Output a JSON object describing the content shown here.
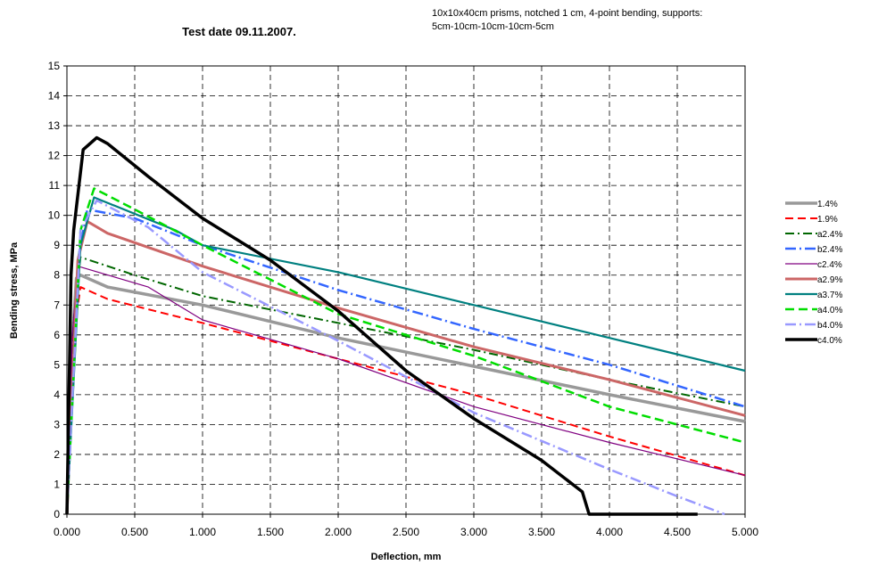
{
  "chart_data": {
    "type": "line",
    "title": "Test date 09.11.2007.",
    "subtitle_lines": [
      "10x10x40cm prisms, notched 1 cm, 4-point bending, supports:",
      "5cm-10cm-10cm-10cm-5cm"
    ],
    "xlabel": "Deflection, mm",
    "ylabel": "Bending stress, MPa",
    "xlim": [
      0,
      5
    ],
    "ylim": [
      0,
      15
    ],
    "x_ticks": [
      "0.000",
      "0.500",
      "1.000",
      "1.500",
      "2.000",
      "2.500",
      "3.000",
      "3.500",
      "4.000",
      "4.500",
      "5.000"
    ],
    "y_ticks": [
      "0",
      "1",
      "2",
      "3",
      "4",
      "5",
      "6",
      "7",
      "8",
      "9",
      "10",
      "11",
      "12",
      "13",
      "14",
      "15"
    ],
    "grid": true,
    "legend_position": "right",
    "series": [
      {
        "name": "1.4%",
        "color": "#999999",
        "dash": "",
        "width": 3.5,
        "points": [
          [
            0,
            0
          ],
          [
            0.03,
            5
          ],
          [
            0.07,
            7.9
          ],
          [
            0.1,
            8.0
          ],
          [
            0.3,
            7.6
          ],
          [
            1.0,
            7.0
          ],
          [
            2.0,
            5.9
          ],
          [
            3.0,
            4.95
          ],
          [
            4.0,
            4.0
          ],
          [
            5.0,
            3.1
          ]
        ]
      },
      {
        "name": "1.9%",
        "color": "#ff0000",
        "dash": "9,5",
        "width": 2,
        "points": [
          [
            0,
            0
          ],
          [
            0.05,
            6
          ],
          [
            0.1,
            7.6
          ],
          [
            0.3,
            7.2
          ],
          [
            1.0,
            6.4
          ],
          [
            2.0,
            5.2
          ],
          [
            3.0,
            4.0
          ],
          [
            4.0,
            2.6
          ],
          [
            5.0,
            1.3
          ]
        ]
      },
      {
        "name": "a2.4%",
        "color": "#006600",
        "dash": "10,4,2,4",
        "width": 2,
        "points": [
          [
            0,
            0
          ],
          [
            0.05,
            6.5
          ],
          [
            0.1,
            8.6
          ],
          [
            0.5,
            8.0
          ],
          [
            1.0,
            7.3
          ],
          [
            2.0,
            6.4
          ],
          [
            3.0,
            5.5
          ],
          [
            4.0,
            4.5
          ],
          [
            5.0,
            3.6
          ]
        ]
      },
      {
        "name": "b2.4%",
        "color": "#3366ff",
        "dash": "12,4,2,4",
        "width": 2.5,
        "points": [
          [
            0,
            0
          ],
          [
            0.08,
            8.5
          ],
          [
            0.15,
            10.2
          ],
          [
            0.5,
            9.9
          ],
          [
            1.0,
            9.0
          ],
          [
            2.0,
            7.5
          ],
          [
            3.0,
            6.2
          ],
          [
            4.0,
            5.0
          ],
          [
            5.0,
            3.6
          ]
        ]
      },
      {
        "name": "c2.4%",
        "color": "#800080",
        "dash": "",
        "width": 1.2,
        "points": [
          [
            0,
            0
          ],
          [
            0.04,
            6
          ],
          [
            0.08,
            8.3
          ],
          [
            0.6,
            7.6
          ],
          [
            1.0,
            6.5
          ],
          [
            2.0,
            5.2
          ],
          [
            3.0,
            3.6
          ],
          [
            4.0,
            2.4
          ],
          [
            5.0,
            1.3
          ]
        ]
      },
      {
        "name": "a2.9%",
        "color": "#cc6666",
        "dash": "",
        "width": 3,
        "points": [
          [
            0,
            0
          ],
          [
            0.08,
            8.5
          ],
          [
            0.15,
            9.8
          ],
          [
            0.3,
            9.4
          ],
          [
            1.0,
            8.3
          ],
          [
            2.0,
            6.9
          ],
          [
            3.0,
            5.6
          ],
          [
            4.0,
            4.5
          ],
          [
            5.0,
            3.3
          ]
        ]
      },
      {
        "name": "a3.7%",
        "color": "#008080",
        "dash": "",
        "width": 2.2,
        "points": [
          [
            0,
            0
          ],
          [
            0.1,
            9.0
          ],
          [
            0.2,
            10.6
          ],
          [
            0.8,
            9.5
          ],
          [
            1.0,
            9.0
          ],
          [
            2.0,
            8.1
          ],
          [
            3.0,
            7.0
          ],
          [
            4.0,
            5.9
          ],
          [
            5.0,
            4.8
          ]
        ]
      },
      {
        "name": "a4.0%",
        "color": "#00dd00",
        "dash": "10,5",
        "width": 2.5,
        "points": [
          [
            0,
            0
          ],
          [
            0.1,
            9.5
          ],
          [
            0.2,
            10.9
          ],
          [
            0.5,
            10.2
          ],
          [
            1.0,
            9.0
          ],
          [
            2.0,
            6.7
          ],
          [
            3.0,
            5.3
          ],
          [
            4.0,
            3.6
          ],
          [
            5.0,
            2.4
          ]
        ]
      },
      {
        "name": "b4.0%",
        "color": "#9999ff",
        "dash": "12,4,2,4",
        "width": 2.5,
        "points": [
          [
            0,
            0
          ],
          [
            0.1,
            9.5
          ],
          [
            0.22,
            10.5
          ],
          [
            0.6,
            9.6
          ],
          [
            1.0,
            8.1
          ],
          [
            2.0,
            5.8
          ],
          [
            3.0,
            3.4
          ],
          [
            4.0,
            1.5
          ],
          [
            4.5,
            0.6
          ],
          [
            4.85,
            0
          ]
        ]
      },
      {
        "name": "c4.0%",
        "color": "#000000",
        "dash": "",
        "width": 3.5,
        "points": [
          [
            0,
            0
          ],
          [
            0.03,
            8.0
          ],
          [
            0.05,
            9.5
          ],
          [
            0.12,
            12.2
          ],
          [
            0.22,
            12.6
          ],
          [
            0.3,
            12.4
          ],
          [
            0.6,
            11.3
          ],
          [
            1.0,
            9.9
          ],
          [
            1.5,
            8.5
          ],
          [
            2.0,
            6.8
          ],
          [
            2.5,
            4.8
          ],
          [
            3.0,
            3.2
          ],
          [
            3.5,
            1.8
          ],
          [
            3.8,
            0.75
          ],
          [
            3.85,
            0
          ],
          [
            4.65,
            0
          ]
        ]
      }
    ]
  }
}
